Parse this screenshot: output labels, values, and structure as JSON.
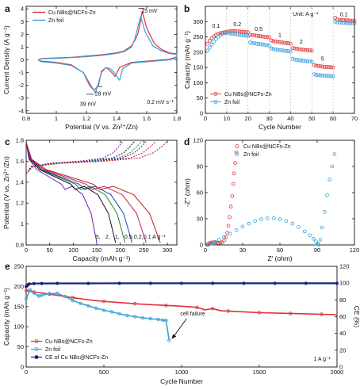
{
  "figure": {
    "panel_letters": [
      "a",
      "b",
      "c",
      "d",
      "e"
    ]
  },
  "chart_data": [
    {
      "id": "a",
      "type": "line",
      "xlabel": "Potential (V vs. Zn²⁺/Zn)",
      "ylabel": "Current Density (A g⁻¹)",
      "xlim": [
        0.8,
        1.8
      ],
      "ylim": [
        -4.2,
        4.2
      ],
      "xticks": [
        0.8,
        1.0,
        1.2,
        1.4,
        1.6,
        1.8
      ],
      "yticks": [
        -4,
        -3,
        -2,
        -1,
        0,
        1,
        2,
        3,
        4
      ],
      "legend_position": "top-left",
      "annotations": [
        "15 mV",
        "39 mV",
        "28 mV",
        "0.2 mV s⁻¹"
      ],
      "series": [
        {
          "name": "Cu NBs@NCFs-Zn",
          "color": "#e0323a",
          "x": [
            1.55,
            1.57,
            1.57,
            1.6,
            1.65,
            1.7,
            1.75,
            1.78,
            1.8,
            1.8,
            1.78,
            1.75,
            1.65,
            1.5,
            1.42,
            1.39,
            1.36,
            1.33,
            1.3,
            1.28,
            1.25,
            1.22,
            1.18,
            1.1,
            1.0,
            0.95,
            0.9,
            0.88,
            0.9,
            1.0,
            1.1,
            1.2,
            1.3,
            1.4,
            1.45,
            1.5,
            1.52,
            1.54,
            1.55
          ],
          "y": [
            2.5,
            3.8,
            3.8,
            2.5,
            1.3,
            0.8,
            0.55,
            0.5,
            0.5,
            0.25,
            0.15,
            0.05,
            -0.05,
            -0.2,
            -0.6,
            -1.3,
            -0.9,
            -0.6,
            -0.9,
            -2.0,
            -2.4,
            -2.0,
            -1.0,
            -0.4,
            -0.2,
            -0.15,
            -0.1,
            0.0,
            0.1,
            0.15,
            0.2,
            0.3,
            0.4,
            0.55,
            0.7,
            1.1,
            1.5,
            2.0,
            2.5
          ]
        },
        {
          "name": "Zn foil",
          "color": "#3aa0dc",
          "x": [
            1.54,
            1.56,
            1.56,
            1.59,
            1.64,
            1.7,
            1.75,
            1.78,
            1.8,
            1.8,
            1.78,
            1.75,
            1.65,
            1.5,
            1.44,
            1.42,
            1.39,
            1.36,
            1.33,
            1.3,
            1.26,
            1.24,
            1.22,
            1.18,
            1.1,
            1.0,
            0.95,
            0.9,
            0.88,
            0.9,
            1.0,
            1.1,
            1.2,
            1.3,
            1.4,
            1.45,
            1.5,
            1.52,
            1.54
          ],
          "y": [
            2.5,
            3.4,
            3.4,
            2.2,
            1.1,
            0.7,
            0.5,
            0.45,
            0.45,
            0.2,
            0.1,
            0.0,
            -0.1,
            -0.25,
            -0.7,
            -1.6,
            -1.1,
            -0.7,
            -0.6,
            -1.0,
            -2.6,
            -2.2,
            -1.8,
            -1.0,
            -0.45,
            -0.25,
            -0.2,
            -0.15,
            0.0,
            0.08,
            0.12,
            0.18,
            0.25,
            0.35,
            0.5,
            0.65,
            1.0,
            1.6,
            2.5
          ]
        }
      ]
    },
    {
      "id": "b",
      "type": "scatter",
      "xlabel": "Cycle Number",
      "ylabel": "Capacity (mAh g⁻¹)",
      "xlim": [
        0,
        70
      ],
      "ylim": [
        0,
        350
      ],
      "xticks": [
        0,
        10,
        20,
        30,
        40,
        50,
        60,
        70
      ],
      "yticks": [
        0,
        50,
        100,
        150,
        200,
        250,
        300
      ],
      "legend_position": "bottom-left",
      "unit_label": "Unit: A g⁻¹",
      "rate_labels": [
        "0.1",
        "0.2",
        "0.5",
        "1",
        "2",
        "5",
        "0.1"
      ],
      "series": [
        {
          "name": "Cu NBs@NCFs-Zn",
          "color": "#e0323a",
          "values": [
            228,
            238,
            246,
            252,
            256,
            260,
            262,
            264,
            265,
            266,
            268,
            269,
            269,
            269,
            268,
            268,
            267,
            266,
            266,
            265,
            257,
            256,
            255,
            254,
            253,
            252,
            251,
            250,
            250,
            249,
            238,
            236,
            235,
            234,
            233,
            232,
            231,
            230,
            229,
            228,
            213,
            212,
            211,
            210,
            209,
            208,
            207,
            207,
            206,
            205,
            158,
            156,
            155,
            154,
            153,
            152,
            152,
            151,
            151,
            150,
            312,
            307,
            306,
            305,
            305,
            304,
            304,
            303,
            303,
            302
          ]
        },
        {
          "name": "Zn foil",
          "color": "#3aa0dc",
          "values": [
            205,
            215,
            225,
            235,
            243,
            250,
            255,
            259,
            262,
            264,
            262,
            261,
            260,
            259,
            258,
            257,
            256,
            255,
            254,
            253,
            232,
            230,
            229,
            228,
            227,
            226,
            225,
            224,
            223,
            222,
            212,
            210,
            209,
            208,
            207,
            206,
            205,
            204,
            203,
            202,
            178,
            176,
            175,
            174,
            173,
            172,
            171,
            170,
            170,
            169,
            128,
            126,
            125,
            124,
            124,
            123,
            123,
            122,
            122,
            121,
            300,
            298,
            297,
            297,
            296,
            296,
            295,
            295,
            294,
            294
          ]
        }
      ]
    },
    {
      "id": "c",
      "type": "line",
      "xlabel": "Capacity (mAh g⁻¹)",
      "ylabel": "Potential (V vs. Zn²⁺/Zn)",
      "xlim": [
        0,
        320
      ],
      "ylim": [
        0.8,
        1.8
      ],
      "xticks": [
        0,
        50,
        100,
        150,
        200,
        250,
        300
      ],
      "yticks": [
        0.8,
        1.0,
        1.2,
        1.4,
        1.6,
        1.8
      ],
      "rate_sequence": [
        "5",
        "2",
        "1",
        "0.5",
        "0.2",
        "0.1 A g⁻¹"
      ],
      "palette": [
        "#6b1fb4",
        "#111111",
        "#1a8a2a",
        "#1f3fb5",
        "#c2185b",
        "#b71c1c"
      ],
      "discharge_capacity_end": [
        150,
        190,
        210,
        225,
        255,
        285
      ],
      "charge_capacity_end": [
        205,
        230,
        245,
        255,
        275,
        300
      ]
    },
    {
      "id": "d",
      "type": "scatter",
      "xlabel": "Z' (ohm)",
      "ylabel": "-Z'' (ohm)",
      "xlim": [
        0,
        120
      ],
      "ylim": [
        0,
        120
      ],
      "xticks": [
        0,
        30,
        60,
        90,
        120
      ],
      "yticks": [
        0,
        30,
        60,
        90,
        120
      ],
      "legend_position": "top-left",
      "series": [
        {
          "name": "Cu NBs@NCFs-Zn",
          "color": "#e0323a",
          "x": [
            1.5,
            2.2,
            3.2,
            4.5,
            6.0,
            7.5,
            9.0,
            10.5,
            12.0,
            13.5,
            15.0,
            16.5,
            17.5,
            18.5,
            19.5,
            20.5,
            21.5,
            22.5,
            23.2,
            24.0,
            24.8
          ],
          "y": [
            0.0,
            1.0,
            2.0,
            2.8,
            3.0,
            2.9,
            2.6,
            2.3,
            2.4,
            3.0,
            5.0,
            9.0,
            14.0,
            22.0,
            32.0,
            44.0,
            56.0,
            70.0,
            82.0,
            94.0,
            106.0
          ]
        },
        {
          "name": "Zn foil",
          "color": "#3aa0dc",
          "x": [
            2,
            5,
            8,
            11,
            15,
            20,
            25,
            30,
            35,
            40,
            45,
            50,
            55,
            60,
            65,
            70,
            75,
            80,
            84,
            87,
            89,
            90.5,
            91.2,
            92.5,
            94,
            96,
            98,
            100,
            102,
            104
          ],
          "y": [
            0,
            1.5,
            3.5,
            6,
            9,
            13,
            17,
            21,
            24.5,
            27.5,
            29.5,
            30.5,
            30.5,
            29.5,
            27.5,
            24.5,
            20.5,
            15.5,
            11,
            7,
            4,
            1.5,
            0.3,
            6,
            20,
            38,
            57,
            75,
            90,
            104
          ]
        }
      ]
    },
    {
      "id": "e",
      "type": "scatter",
      "xlabel": "Cycle Number",
      "ylabel": "Capacity (mAh g⁻¹)",
      "y2label": "CE (%)",
      "xlim": [
        0,
        2000
      ],
      "ylim": [
        0,
        250
      ],
      "y2lim": [
        0,
        120
      ],
      "xticks": [
        0,
        500,
        1000,
        1500,
        2000
      ],
      "yticks": [
        0,
        50,
        100,
        150,
        200,
        250
      ],
      "y2ticks": [
        0,
        20,
        40,
        60,
        80,
        100,
        120
      ],
      "legend_position": "bottom-left",
      "rate_annotation": "1 A g⁻¹",
      "failure_annotation": "cell failure",
      "series": [
        {
          "name": "Cu NBs@NCFs-Zn",
          "color": "#e0323a",
          "x": [
            0,
            25,
            50,
            100,
            150,
            200,
            300,
            400,
            500,
            600,
            700,
            800,
            900,
            1000,
            1100,
            1150,
            1200,
            1250,
            1300,
            1400,
            1500,
            1600,
            1700,
            1800,
            1900,
            2000
          ],
          "y": [
            190,
            188,
            186,
            184,
            181,
            178,
            172,
            167,
            163,
            160,
            157,
            155,
            153,
            151,
            148,
            142,
            145,
            140,
            139,
            137,
            135,
            134,
            133,
            132,
            131,
            130
          ]
        },
        {
          "name": "Zn foil",
          "color": "#3aa0dc",
          "x": [
            0,
            25,
            50,
            80,
            100,
            150,
            200,
            250,
            300,
            350,
            400,
            450,
            500,
            550,
            600,
            650,
            700,
            750,
            800,
            850,
            880,
            900,
            920
          ],
          "y": [
            170,
            192,
            184,
            176,
            178,
            182,
            183,
            175,
            165,
            158,
            152,
            146,
            141,
            137,
            132,
            128,
            125,
            122,
            120,
            118,
            116,
            116,
            66
          ]
        },
        {
          "name": "CE of Cu NBs@NCFs-Zn",
          "color": "#1a237e",
          "axis": "y2",
          "x": [
            0,
            10,
            20,
            50,
            100,
            200,
            400,
            600,
            800,
            1000,
            1200,
            1400,
            1600,
            1800,
            2000
          ],
          "y": [
            96,
            98,
            99,
            99.5,
            99.6,
            99.7,
            99.7,
            99.8,
            99.8,
            99.8,
            99.8,
            99.8,
            99.8,
            99.8,
            99.8
          ]
        }
      ]
    }
  ]
}
